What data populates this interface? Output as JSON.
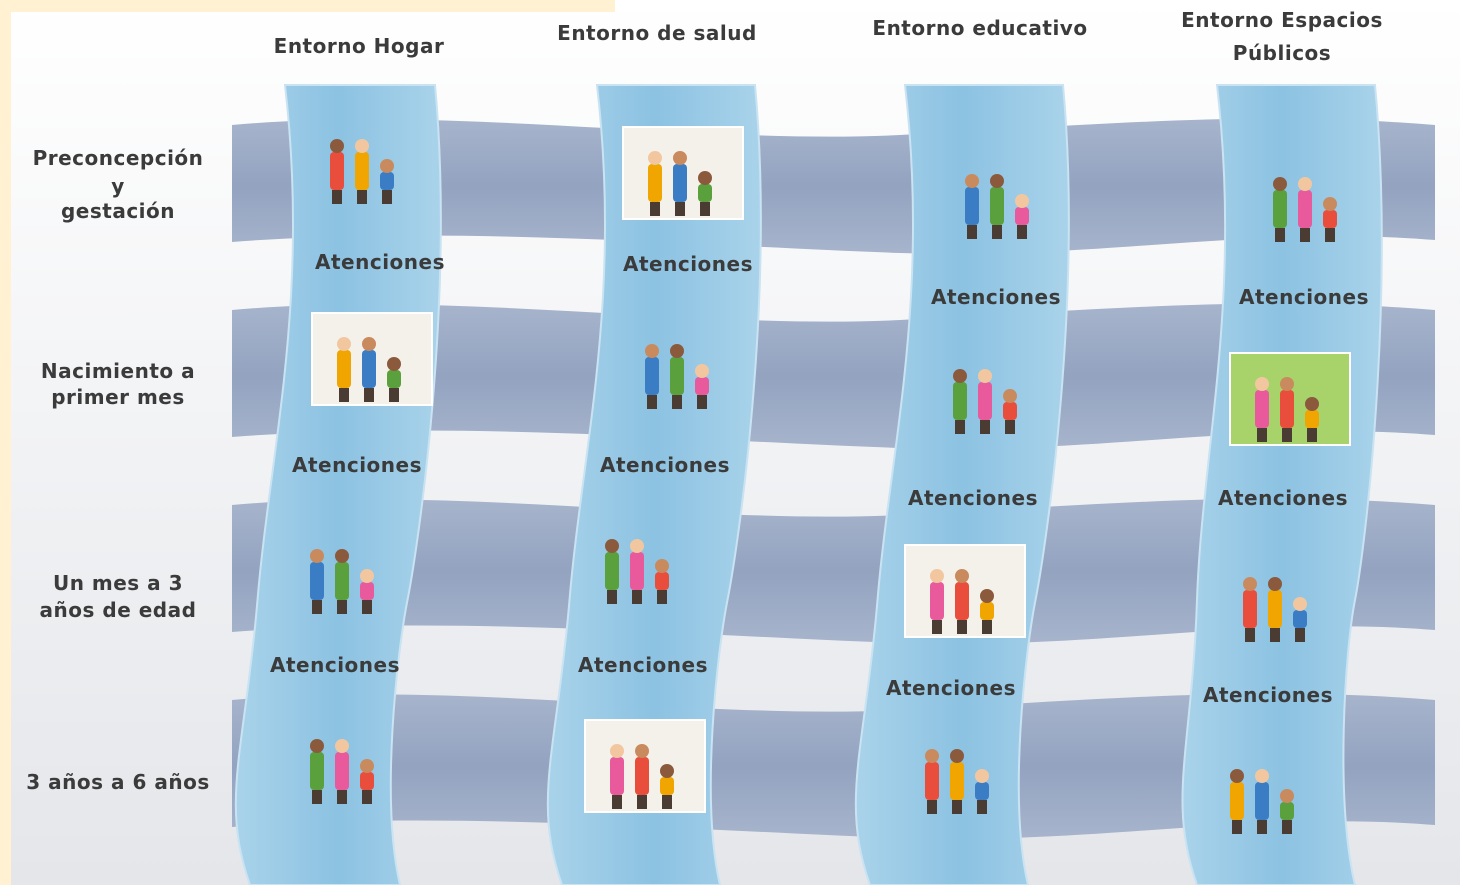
{
  "columns": [
    {
      "title": [
        "Entorno Hogar"
      ],
      "labels": [
        "Atenciones",
        "Atenciones",
        "Atenciones"
      ]
    },
    {
      "title": [
        "Entorno de salud"
      ],
      "labels": [
        "Atenciones",
        "Atenciones",
        "Atenciones"
      ]
    },
    {
      "title": [
        "Entorno educativo"
      ],
      "labels": [
        "Atenciones",
        "Atenciones",
        "Atenciones"
      ]
    },
    {
      "title": [
        "Entorno Espacios",
        "Públicos"
      ],
      "labels": [
        "Atenciones",
        "Atenciones",
        "Atenciones"
      ]
    }
  ],
  "rows": [
    {
      "label": [
        "Preconcepción",
        "y",
        "gestación"
      ]
    },
    {
      "label": [
        "Nacimiento a",
        "primer mes"
      ]
    },
    {
      "label": [
        "Un mes a 3",
        "años de edad"
      ]
    },
    {
      "label": [
        "3 años a 6 años"
      ]
    }
  ]
}
